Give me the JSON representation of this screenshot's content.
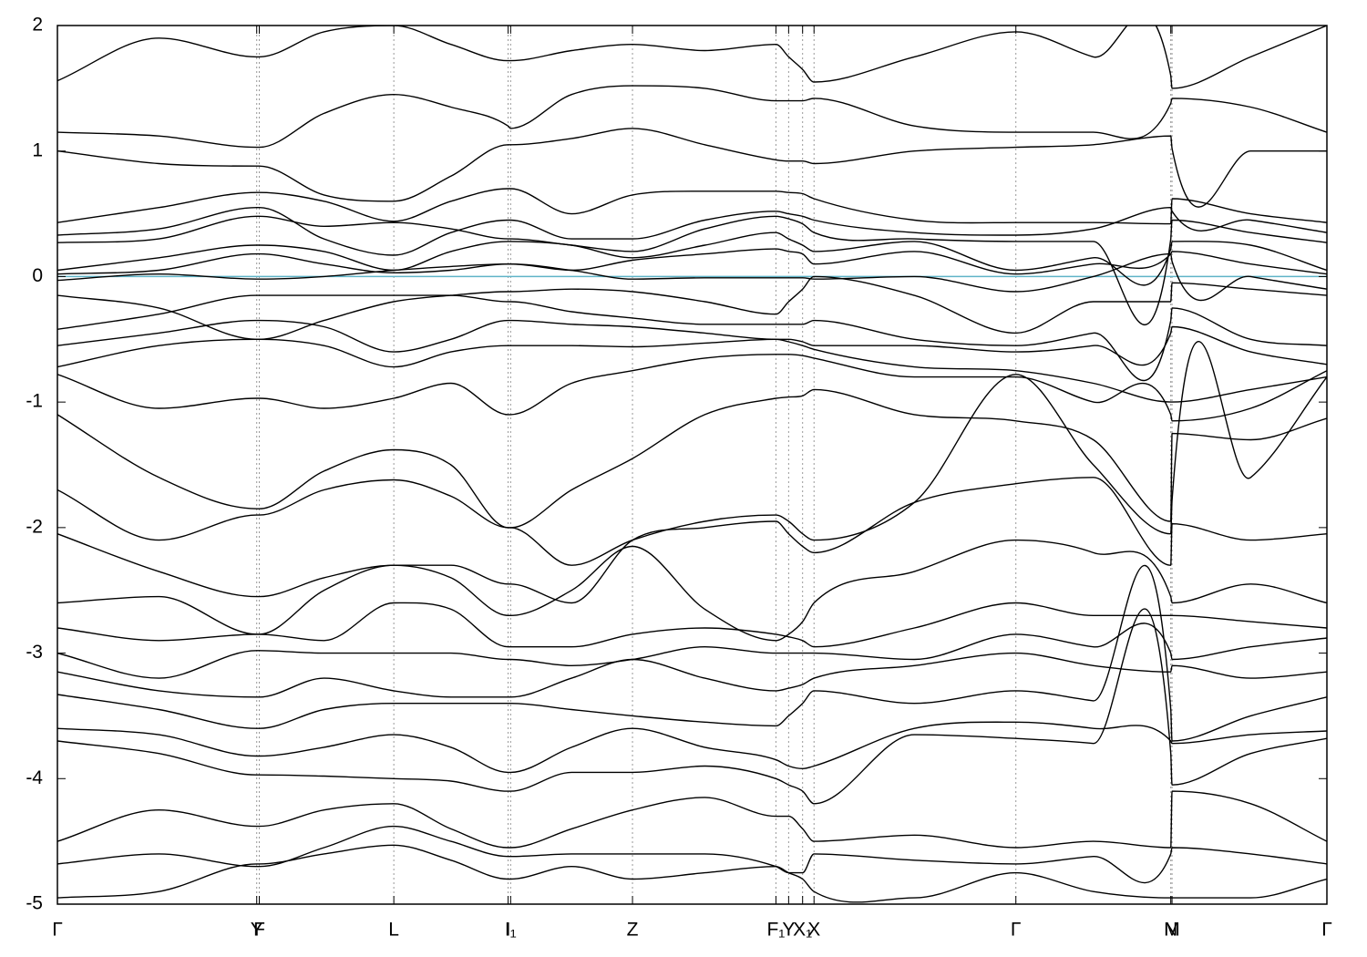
{
  "chart_data": {
    "type": "line",
    "x": [
      0,
      0.08,
      0.157,
      0.159,
      0.21,
      0.265,
      0.31,
      0.355,
      0.357,
      0.405,
      0.453,
      0.51,
      0.566,
      0.576,
      0.587,
      0.596,
      0.675,
      0.755,
      0.816,
      0.877,
      0.878,
      0.94,
      1
    ],
    "xlim": [
      0,
      1
    ],
    "xticks": [
      {
        "value": 0,
        "label": "Γ"
      },
      {
        "value": 0.157,
        "label": "Y"
      },
      {
        "value": 0.159,
        "label": "F"
      },
      {
        "value": 0.265,
        "label": "L"
      },
      {
        "value": 0.355,
        "label": "I"
      },
      {
        "value": 0.357,
        "label": "I₁"
      },
      {
        "value": 0.453,
        "label": "Z"
      },
      {
        "value": 0.566,
        "label": "F₁"
      },
      {
        "value": 0.576,
        "label": "Y"
      },
      {
        "value": 0.587,
        "label": "X₁"
      },
      {
        "value": 0.596,
        "label": "X"
      },
      {
        "value": 0.755,
        "label": "Γ"
      },
      {
        "value": 0.877,
        "label": "N"
      },
      {
        "value": 0.878,
        "label": "M"
      },
      {
        "value": 1,
        "label": "Γ"
      }
    ],
    "ylim": [
      -5,
      2
    ],
    "yticks": [
      -5,
      -4,
      -3,
      -2,
      -1,
      0,
      1,
      2
    ],
    "grid": true,
    "fermi_level": 0,
    "fermi_color": "#5fb4c8",
    "series": [
      {
        "color": "#000000",
        "values": [
          1.56,
          1.9,
          1.75,
          1.75,
          1.95,
          2.0,
          1.85,
          1.72,
          1.72,
          1.8,
          1.85,
          1.8,
          1.85,
          1.75,
          1.65,
          1.55,
          1.75,
          1.95,
          1.75,
          1.6,
          1.5,
          1.75,
          2.0
        ]
      },
      {
        "color": "#000000",
        "values": [
          1.15,
          1.12,
          1.03,
          1.03,
          1.3,
          1.45,
          1.35,
          1.2,
          1.18,
          1.45,
          1.52,
          1.5,
          1.4,
          1.4,
          1.4,
          1.42,
          1.2,
          1.15,
          1.15,
          1.38,
          1.42,
          1.35,
          1.15
        ]
      },
      {
        "color": "#000000",
        "values": [
          1.0,
          0.9,
          0.88,
          0.88,
          0.65,
          0.6,
          0.8,
          1.05,
          1.05,
          1.1,
          1.18,
          1.05,
          0.93,
          0.92,
          0.92,
          0.9,
          1.0,
          1.03,
          1.05,
          1.12,
          1.02,
          1.0,
          1.0
        ]
      },
      {
        "color": "#000000",
        "values": [
          0.43,
          0.55,
          0.67,
          0.67,
          0.6,
          0.44,
          0.6,
          0.7,
          0.7,
          0.5,
          0.65,
          0.68,
          0.68,
          0.67,
          0.66,
          0.62,
          0.45,
          0.43,
          0.43,
          0.42,
          0.62,
          0.5,
          0.43
        ]
      },
      {
        "color": "#000000",
        "values": [
          0.33,
          0.38,
          0.55,
          0.55,
          0.3,
          0.17,
          0.35,
          0.45,
          0.45,
          0.3,
          0.3,
          0.45,
          0.52,
          0.5,
          0.48,
          0.45,
          0.35,
          0.33,
          0.38,
          0.55,
          0.52,
          0.45,
          0.35
        ]
      },
      {
        "color": "#000000",
        "values": [
          0.27,
          0.3,
          0.48,
          0.48,
          0.4,
          0.43,
          0.38,
          0.3,
          0.3,
          0.25,
          0.2,
          0.38,
          0.48,
          0.46,
          0.42,
          0.35,
          0.3,
          0.28,
          0.28,
          0.3,
          0.45,
          0.35,
          0.27
        ]
      },
      {
        "color": "#000000",
        "values": [
          0.05,
          0.15,
          0.25,
          0.25,
          0.2,
          0.05,
          0.2,
          0.28,
          0.28,
          0.25,
          0.15,
          0.25,
          0.35,
          0.3,
          0.25,
          0.2,
          0.28,
          0.05,
          0.15,
          0.22,
          0.28,
          0.25,
          0.05
        ]
      },
      {
        "color": "#000000",
        "values": [
          0.02,
          0.05,
          0.18,
          0.18,
          0.1,
          0.03,
          0.05,
          0.1,
          0.1,
          0.05,
          0.13,
          0.18,
          0.22,
          0.2,
          0.18,
          0.1,
          0.2,
          0.02,
          0.1,
          0.18,
          0.2,
          0.1,
          0.02
        ]
      },
      {
        "color": "#000000",
        "values": [
          -0.03,
          0.02,
          -0.02,
          -0.02,
          0.0,
          0.05,
          0.08,
          0.1,
          0.1,
          0.05,
          -0.02,
          -0.01,
          -0.01,
          -0.01,
          -0.01,
          -0.02,
          0.0,
          -0.12,
          0.0,
          0.18,
          0.12,
          0.0,
          -0.1
        ]
      },
      {
        "color": "#000000",
        "values": [
          -0.15,
          -0.25,
          -0.5,
          -0.5,
          -0.35,
          -0.2,
          -0.15,
          -0.12,
          -0.12,
          -0.1,
          -0.12,
          -0.2,
          -0.3,
          -0.2,
          -0.1,
          0.0,
          -0.15,
          -0.45,
          -0.2,
          -0.2,
          -0.05,
          -0.1,
          -0.15
        ]
      },
      {
        "color": "#000000",
        "values": [
          -0.42,
          -0.3,
          -0.15,
          -0.15,
          -0.15,
          -0.15,
          -0.15,
          -0.2,
          -0.2,
          -0.28,
          -0.33,
          -0.38,
          -0.38,
          -0.38,
          -0.38,
          -0.35,
          -0.5,
          -0.55,
          -0.45,
          -0.35,
          -0.25,
          -0.5,
          -0.55
        ]
      },
      {
        "color": "#000000",
        "values": [
          -0.55,
          -0.45,
          -0.35,
          -0.35,
          -0.4,
          -0.6,
          -0.5,
          -0.35,
          -0.35,
          -0.38,
          -0.4,
          -0.45,
          -0.5,
          -0.5,
          -0.52,
          -0.55,
          -0.55,
          -0.6,
          -0.55,
          -0.45,
          -0.4,
          -0.6,
          -0.7
        ]
      },
      {
        "color": "#000000",
        "values": [
          -0.72,
          -0.55,
          -0.5,
          -0.5,
          -0.55,
          -0.72,
          -0.6,
          -0.55,
          -0.55,
          -0.55,
          -0.56,
          -0.53,
          -0.5,
          -0.52,
          -0.55,
          -0.58,
          -0.72,
          -0.75,
          -0.85,
          -1.0,
          -1.0,
          -0.9,
          -0.8
        ]
      },
      {
        "color": "#000000",
        "values": [
          -0.78,
          -1.05,
          -0.97,
          -0.97,
          -1.05,
          -0.97,
          -0.85,
          -1.1,
          -1.1,
          -0.85,
          -0.75,
          -0.65,
          -0.62,
          -0.62,
          -0.63,
          -0.65,
          -0.8,
          -0.8,
          -1.0,
          -1.1,
          -1.15,
          -1.05,
          -0.75
        ]
      },
      {
        "color": "#000000",
        "values": [
          -1.1,
          -1.6,
          -1.85,
          -1.85,
          -1.55,
          -1.38,
          -1.5,
          -2.0,
          -2.0,
          -1.7,
          -1.45,
          -1.1,
          -0.97,
          -0.96,
          -0.95,
          -0.9,
          -1.1,
          -1.15,
          -1.3,
          -1.95,
          -1.25,
          -1.3,
          -1.13
        ]
      },
      {
        "color": "#000000",
        "values": [
          -1.7,
          -2.1,
          -1.9,
          -1.9,
          -1.7,
          -1.62,
          -1.75,
          -2.0,
          -2.0,
          -2.3,
          -2.1,
          -1.95,
          -1.9,
          -1.95,
          -2.05,
          -2.1,
          -1.8,
          -0.78,
          -1.5,
          -2.05,
          -1.78,
          -1.6,
          -0.8
        ]
      },
      {
        "color": "#000000",
        "values": [
          -2.05,
          -2.35,
          -2.55,
          -2.55,
          -2.4,
          -2.3,
          -2.3,
          -2.45,
          -2.45,
          -2.6,
          -2.1,
          -2.0,
          -1.95,
          -2.05,
          -2.15,
          -2.2,
          -1.8,
          -1.65,
          -1.6,
          -2.3,
          -1.97,
          -2.1,
          -2.05
        ]
      },
      {
        "color": "#000000",
        "values": [
          -2.6,
          -2.55,
          -2.85,
          -2.85,
          -2.5,
          -2.3,
          -2.4,
          -2.7,
          -2.7,
          -2.5,
          -2.15,
          -2.65,
          -2.9,
          -2.85,
          -2.75,
          -2.6,
          -2.35,
          -2.1,
          -2.2,
          -2.55,
          -2.6,
          -2.45,
          -2.6
        ]
      },
      {
        "color": "#000000",
        "values": [
          -2.8,
          -2.9,
          -2.85,
          -2.85,
          -2.9,
          -2.6,
          -2.65,
          -2.95,
          -2.95,
          -2.95,
          -2.85,
          -2.8,
          -2.85,
          -2.87,
          -2.9,
          -2.95,
          -2.8,
          -2.6,
          -2.7,
          -2.7,
          -2.7,
          -2.75,
          -2.8
        ]
      },
      {
        "color": "#000000",
        "values": [
          -3.0,
          -3.2,
          -2.98,
          -2.98,
          -3.0,
          -3.0,
          -3.0,
          -3.05,
          -3.05,
          -3.1,
          -3.05,
          -2.95,
          -3.0,
          -3.0,
          -3.0,
          -3.0,
          -3.05,
          -2.85,
          -2.95,
          -3.0,
          -3.05,
          -2.95,
          -2.88
        ]
      },
      {
        "color": "#000000",
        "values": [
          -3.15,
          -3.3,
          -3.35,
          -3.35,
          -3.2,
          -3.3,
          -3.35,
          -3.35,
          -3.35,
          -3.2,
          -3.05,
          -3.2,
          -3.3,
          -3.28,
          -3.25,
          -3.2,
          -3.1,
          -3.0,
          -3.1,
          -3.15,
          -3.1,
          -3.2,
          -3.15
        ]
      },
      {
        "color": "#000000",
        "values": [
          -3.33,
          -3.45,
          -3.6,
          -3.6,
          -3.45,
          -3.4,
          -3.4,
          -3.4,
          -3.4,
          -3.45,
          -3.5,
          -3.55,
          -3.58,
          -3.5,
          -3.4,
          -3.3,
          -3.4,
          -3.3,
          -3.38,
          -3.45,
          -3.7,
          -3.5,
          -3.35
        ]
      },
      {
        "color": "#000000",
        "values": [
          -3.6,
          -3.65,
          -3.82,
          -3.82,
          -3.75,
          -3.65,
          -3.75,
          -3.95,
          -3.95,
          -3.75,
          -3.6,
          -3.75,
          -3.85,
          -3.9,
          -3.92,
          -3.9,
          -3.6,
          -3.55,
          -3.6,
          -3.7,
          -3.72,
          -3.65,
          -3.62
        ]
      },
      {
        "color": "#000000",
        "values": [
          -3.7,
          -3.8,
          -3.97,
          -3.97,
          -3.98,
          -4.0,
          -4.02,
          -4.1,
          -4.1,
          -3.95,
          -3.95,
          -3.9,
          -4.0,
          -4.05,
          -4.1,
          -4.2,
          -3.65,
          -3.68,
          -3.72,
          -3.8,
          -4.05,
          -3.8,
          -3.68
        ]
      },
      {
        "color": "#000000",
        "values": [
          -4.5,
          -4.25,
          -4.38,
          -4.38,
          -4.25,
          -4.2,
          -4.4,
          -4.55,
          -4.55,
          -4.4,
          -4.25,
          -4.15,
          -4.3,
          -4.3,
          -4.4,
          -4.5,
          -4.45,
          -4.55,
          -4.5,
          -4.55,
          -4.1,
          -4.2,
          -4.5
        ]
      },
      {
        "color": "#000000",
        "values": [
          -4.68,
          -4.6,
          -4.7,
          -4.7,
          -4.55,
          -4.38,
          -4.5,
          -4.62,
          -4.62,
          -4.6,
          -4.6,
          -4.6,
          -4.7,
          -4.75,
          -4.75,
          -4.6,
          -4.65,
          -4.68,
          -4.62,
          -4.6,
          -4.55,
          -4.6,
          -4.68
        ]
      },
      {
        "color": "#000000",
        "values": [
          -4.95,
          -4.9,
          -4.68,
          -4.68,
          -4.6,
          -4.53,
          -4.65,
          -4.8,
          -4.8,
          -4.7,
          -4.8,
          -4.75,
          -4.7,
          -4.75,
          -4.8,
          -4.9,
          -4.95,
          -4.75,
          -4.9,
          -4.95,
          -4.95,
          -4.95,
          -4.8
        ]
      }
    ]
  }
}
